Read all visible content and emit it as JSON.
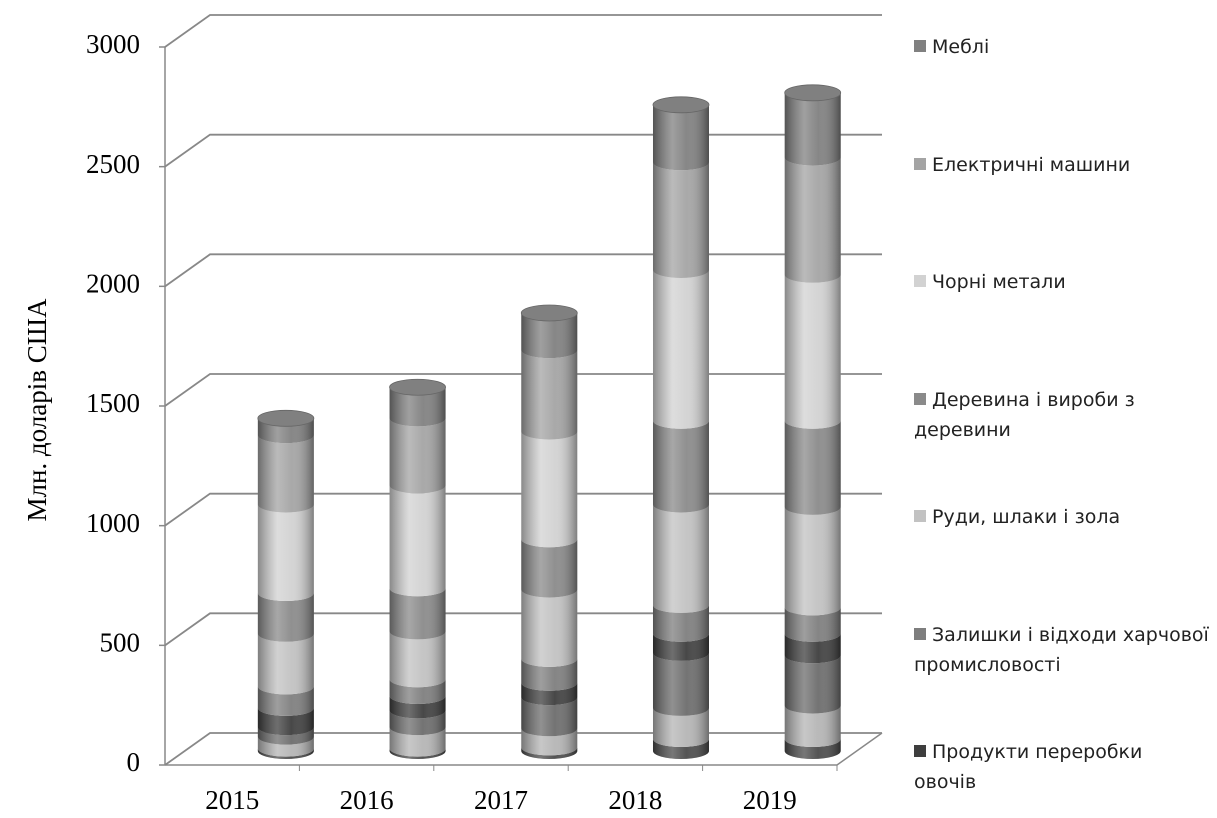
{
  "chart_data": {
    "type": "bar3d_stacked",
    "y_label": "Млн. доларів США",
    "categories": [
      "2015",
      "2016",
      "2017",
      "2018",
      "2019"
    ],
    "series": [
      {
        "color": "#4a4a4a",
        "values": [
          10,
          10,
          15,
          50,
          50
        ]
      },
      {
        "color": "#b5b5b5",
        "values": [
          50,
          90,
          80,
          130,
          140
        ]
      },
      {
        "color": "#6c6c6c",
        "values": [
          40,
          70,
          130,
          230,
          210
        ]
      },
      {
        "name": "Продукти переробки овочів",
        "color": "#3e3e3e",
        "values": [
          80,
          60,
          60,
          80,
          90
        ]
      },
      {
        "name": "Залишки і відходи харчової промисловості",
        "color": "#7e7e7e",
        "values": [
          90,
          70,
          100,
          120,
          110
        ]
      },
      {
        "name": "Руди, шлаки і зола",
        "color": "#c2c2c2",
        "values": [
          220,
          200,
          290,
          420,
          420
        ]
      },
      {
        "name": "Деревина і вироби з деревини",
        "color": "#8a8a8a",
        "values": [
          170,
          180,
          210,
          350,
          360
        ]
      },
      {
        "name": "Чорні метали",
        "color": "#d2d2d2",
        "values": [
          370,
          430,
          450,
          630,
          610
        ]
      },
      {
        "name": "Електричні машини",
        "color": "#a4a4a4",
        "values": [
          290,
          280,
          340,
          450,
          490
        ]
      },
      {
        "name": "Меблі",
        "color": "#808080",
        "values": [
          70,
          130,
          155,
          240,
          270
        ]
      }
    ],
    "ylim": [
      0,
      3000
    ],
    "yticks": [
      0,
      500,
      1000,
      1500,
      2000,
      2500,
      3000
    ],
    "grid": true
  }
}
